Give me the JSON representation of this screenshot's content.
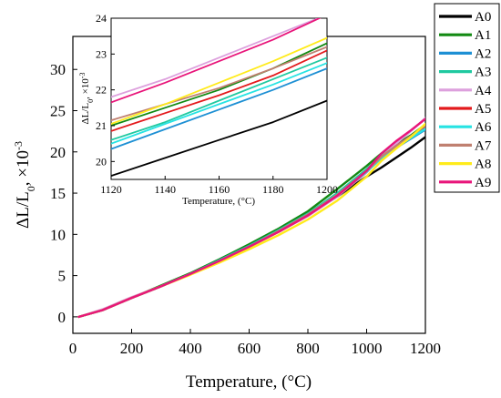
{
  "chart_data": [
    {
      "type": "line",
      "xlabel": "Temperature, (°C)",
      "ylabel_main": "ΔL/L",
      "ylabel_sub": "0",
      "ylabel_rest": ", ×10",
      "ylabel_exp": "-3",
      "xlim": [
        0,
        1200
      ],
      "ylim": [
        -2,
        34
      ],
      "xticks": [
        0,
        200,
        400,
        600,
        800,
        1000,
        1200
      ],
      "yticks": [
        0,
        5,
        10,
        15,
        20,
        25,
        30
      ],
      "x": [
        20,
        100,
        200,
        300,
        400,
        500,
        600,
        700,
        800,
        900,
        1000,
        1050,
        1100,
        1150,
        1200
      ],
      "series": [
        {
          "name": "A0",
          "color": "#000000",
          "values": [
            0,
            0.8,
            2.3,
            3.7,
            5.2,
            6.8,
            8.5,
            10.3,
            12.3,
            14.6,
            17.0,
            18.1,
            19.3,
            20.5,
            21.8
          ]
        },
        {
          "name": "A1",
          "color": "#138a13",
          "values": [
            0,
            0.8,
            2.3,
            3.8,
            5.3,
            7.0,
            8.8,
            10.7,
            12.8,
            15.5,
            18.3,
            19.8,
            20.9,
            22.0,
            23.3
          ]
        },
        {
          "name": "A2",
          "color": "#1e90d4",
          "values": [
            0,
            0.8,
            2.3,
            3.7,
            5.2,
            6.9,
            8.6,
            10.5,
            12.5,
            15.0,
            17.8,
            19.3,
            20.5,
            21.6,
            22.7
          ]
        },
        {
          "name": "A3",
          "color": "#20c9a0",
          "values": [
            0,
            0.8,
            2.3,
            3.7,
            5.2,
            6.9,
            8.6,
            10.5,
            12.5,
            15.0,
            17.9,
            19.5,
            20.6,
            21.8,
            22.9
          ]
        },
        {
          "name": "A4",
          "color": "#dda0dd",
          "values": [
            0,
            0.9,
            2.4,
            3.7,
            5.2,
            6.8,
            8.5,
            10.3,
            12.2,
            14.6,
            17.5,
            19.4,
            21.0,
            22.5,
            24.1
          ]
        },
        {
          "name": "A5",
          "color": "#e31a1c",
          "values": [
            0,
            0.8,
            2.3,
            3.7,
            5.2,
            6.8,
            8.5,
            10.3,
            12.3,
            14.7,
            17.6,
            19.4,
            20.7,
            21.9,
            23.1
          ]
        },
        {
          "name": "A6",
          "color": "#26e3e3",
          "values": [
            0,
            0.8,
            2.3,
            3.7,
            5.2,
            6.8,
            8.5,
            10.4,
            12.4,
            14.8,
            17.6,
            19.2,
            20.5,
            21.7,
            22.8
          ]
        },
        {
          "name": "A7",
          "color": "#c08070",
          "values": [
            0,
            0.8,
            2.3,
            3.7,
            5.2,
            6.8,
            8.5,
            10.4,
            12.4,
            14.8,
            17.7,
            19.4,
            20.7,
            21.9,
            23.2
          ]
        },
        {
          "name": "A8",
          "color": "#ffeb1a",
          "values": [
            0,
            0.8,
            2.3,
            3.7,
            5.1,
            6.6,
            8.2,
            9.9,
            11.8,
            14.1,
            17.0,
            18.9,
            20.4,
            21.8,
            23.4
          ]
        },
        {
          "name": "A9",
          "color": "#e8157a",
          "values": [
            0,
            0.8,
            2.3,
            3.7,
            5.2,
            6.8,
            8.5,
            10.3,
            12.3,
            14.7,
            17.7,
            19.8,
            21.3,
            22.6,
            24.0
          ]
        }
      ]
    },
    {
      "type": "line",
      "xlabel": "Temperature, (°C)",
      "ylabel_main": "ΔL/L",
      "ylabel_sub": "0",
      "ylabel_rest": ", ×10",
      "ylabel_exp": "-3",
      "xlim": [
        1120,
        1200
      ],
      "ylim": [
        19.5,
        24
      ],
      "xticks": [
        1120,
        1140,
        1160,
        1180,
        1200
      ],
      "yticks": [
        20,
        21,
        22,
        23,
        24
      ],
      "x": [
        1120,
        1140,
        1160,
        1180,
        1200
      ],
      "series": [
        {
          "name": "A0",
          "color": "#000000",
          "values": [
            19.6,
            20.1,
            20.6,
            21.1,
            21.7
          ]
        },
        {
          "name": "A1",
          "color": "#138a13",
          "values": [
            21.0,
            21.5,
            22.0,
            22.6,
            23.3
          ]
        },
        {
          "name": "A2",
          "color": "#1e90d4",
          "values": [
            20.35,
            20.9,
            21.45,
            22.0,
            22.6
          ]
        },
        {
          "name": "A3",
          "color": "#20c9a0",
          "values": [
            20.6,
            21.1,
            21.7,
            22.3,
            22.9
          ]
        },
        {
          "name": "A4",
          "color": "#dda0dd",
          "values": [
            21.8,
            22.3,
            22.9,
            23.5,
            24.1
          ]
        },
        {
          "name": "A5",
          "color": "#e31a1c",
          "values": [
            20.85,
            21.35,
            21.85,
            22.4,
            23.1
          ]
        },
        {
          "name": "A6",
          "color": "#26e3e3",
          "values": [
            20.5,
            21.05,
            21.6,
            22.15,
            22.75
          ]
        },
        {
          "name": "A7",
          "color": "#c08070",
          "values": [
            21.15,
            21.6,
            22.05,
            22.6,
            23.2
          ]
        },
        {
          "name": "A8",
          "color": "#ffeb1a",
          "values": [
            21.05,
            21.6,
            22.2,
            22.8,
            23.45
          ]
        },
        {
          "name": "A9",
          "color": "#e8157a",
          "values": [
            21.65,
            22.2,
            22.8,
            23.4,
            24.1
          ]
        }
      ]
    }
  ],
  "legend": {
    "placement": "right",
    "entries": [
      "A0",
      "A1",
      "A2",
      "A3",
      "A4",
      "A5",
      "A6",
      "A7",
      "A8",
      "A9"
    ]
  }
}
